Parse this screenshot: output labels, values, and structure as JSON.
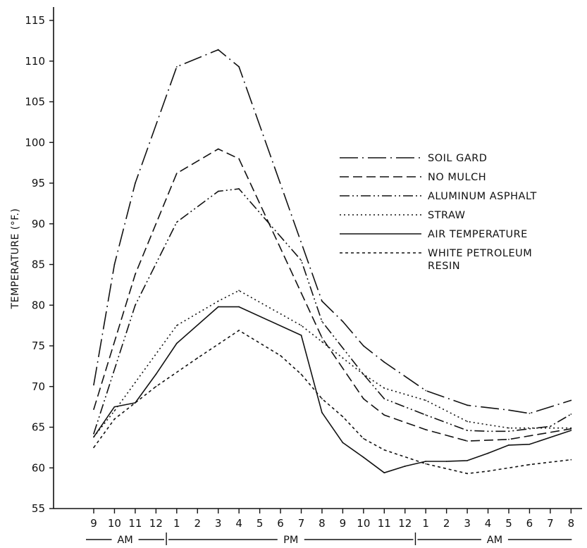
{
  "chart_data": {
    "type": "line",
    "title": "",
    "ylabel": "TEMPERATURE (°F.)",
    "xlabel": "",
    "ylim": [
      55,
      115
    ],
    "yticks": [
      55,
      60,
      65,
      70,
      75,
      80,
      85,
      90,
      95,
      100,
      105,
      110,
      115
    ],
    "ytick_labels": [
      "55",
      "60",
      "65",
      "70",
      "75",
      "80",
      "85",
      "90",
      "95",
      "100",
      "105",
      "110",
      "115"
    ],
    "categories": [
      "9",
      "10",
      "11",
      "12",
      "1",
      "2",
      "3",
      "4",
      "5",
      "6",
      "7",
      "8",
      "9",
      "10",
      "11",
      "12",
      "1",
      "2",
      "3",
      "4",
      "5",
      "6",
      "7",
      "8"
    ],
    "periods": [
      {
        "label": "AM",
        "from": 0,
        "to": 3
      },
      {
        "label": "PM",
        "from": 3,
        "to": 15
      },
      {
        "label": "AM",
        "from": 15,
        "to": 23
      }
    ],
    "legend_position": "center-right",
    "grid": false,
    "series": [
      {
        "name": "SOIL GARD",
        "dash": "long-dash-dot",
        "points": [
          [
            0,
            70.2
          ],
          [
            1,
            85
          ],
          [
            2,
            95
          ],
          [
            4,
            109.3
          ],
          [
            6,
            111.4
          ],
          [
            7,
            109.3
          ],
          [
            11,
            80.5
          ],
          [
            12,
            78
          ],
          [
            13,
            75
          ],
          [
            14,
            73
          ],
          [
            16,
            69.5
          ],
          [
            18,
            67.7
          ],
          [
            20,
            67.1
          ],
          [
            21,
            66.7
          ],
          [
            23,
            68.3
          ]
        ]
      },
      {
        "name": "NO MULCH",
        "dash": "dash",
        "points": [
          [
            0,
            67.2
          ],
          [
            2,
            83.8
          ],
          [
            4,
            96.2
          ],
          [
            6,
            99.2
          ],
          [
            7,
            98
          ],
          [
            10,
            81.5
          ],
          [
            11,
            76
          ],
          [
            13,
            68.5
          ],
          [
            14,
            66.5
          ],
          [
            16,
            64.7
          ],
          [
            18,
            63.3
          ],
          [
            20,
            63.5
          ],
          [
            23,
            64.8
          ]
        ]
      },
      {
        "name": "ALUMINUM ASPHALT",
        "dash": "dash-dot-dot",
        "points": [
          [
            0,
            64.2
          ],
          [
            2,
            80
          ],
          [
            4,
            90.2
          ],
          [
            6,
            94
          ],
          [
            7,
            94.3
          ],
          [
            10,
            85.5
          ],
          [
            11,
            78
          ],
          [
            13,
            71.5
          ],
          [
            14,
            68.5
          ],
          [
            16,
            66.5
          ],
          [
            18,
            64.6
          ],
          [
            19,
            64.5
          ],
          [
            20,
            64.5
          ],
          [
            22,
            65.1
          ],
          [
            23,
            66.6
          ]
        ]
      },
      {
        "name": "STRAW",
        "dash": "dot",
        "points": [
          [
            0,
            63.8
          ],
          [
            1,
            67
          ],
          [
            2,
            70.5
          ],
          [
            4,
            77.5
          ],
          [
            6,
            80.5
          ],
          [
            7,
            81.8
          ],
          [
            10,
            77.5
          ],
          [
            11,
            75.5
          ],
          [
            12,
            73.5
          ],
          [
            13,
            71.5
          ],
          [
            14,
            69.8
          ],
          [
            16,
            68.3
          ],
          [
            18,
            65.7
          ],
          [
            20,
            64.9
          ],
          [
            23,
            64.9
          ]
        ]
      },
      {
        "name": "AIR TEMPERATURE",
        "dash": "solid",
        "points": [
          [
            0,
            63.8
          ],
          [
            1,
            67.5
          ],
          [
            2,
            68
          ],
          [
            3,
            71.5
          ],
          [
            4,
            75.3
          ],
          [
            6,
            79.8
          ],
          [
            7,
            79.8
          ],
          [
            10,
            76.3
          ],
          [
            11,
            66.8
          ],
          [
            12,
            63.1
          ],
          [
            13,
            61.3
          ],
          [
            14,
            59.4
          ],
          [
            15,
            60.2
          ],
          [
            16,
            60.8
          ],
          [
            17,
            60.8
          ],
          [
            18,
            60.9
          ],
          [
            19,
            61.8
          ],
          [
            20,
            62.8
          ],
          [
            21,
            62.9
          ],
          [
            23,
            64.6
          ]
        ]
      },
      {
        "name": "WHITE PETROLEUM RESIN",
        "dash": "short-dash",
        "points": [
          [
            0,
            62.5
          ],
          [
            1,
            66
          ],
          [
            2,
            68
          ],
          [
            3,
            70
          ],
          [
            5,
            73.5
          ],
          [
            7,
            76.9
          ],
          [
            9,
            73.8
          ],
          [
            10,
            71.5
          ],
          [
            11,
            68.5
          ],
          [
            12,
            66.3
          ],
          [
            13,
            63.6
          ],
          [
            14,
            62.2
          ],
          [
            16,
            60.5
          ],
          [
            18,
            59.3
          ],
          [
            19,
            59.6
          ],
          [
            21,
            60.4
          ],
          [
            23,
            61
          ]
        ]
      }
    ]
  },
  "legend": [
    {
      "label": "SOIL GARD"
    },
    {
      "label": "NO MULCH"
    },
    {
      "label": "ALUMINUM ASPHALT"
    },
    {
      "label": "STRAW"
    },
    {
      "label": "AIR TEMPERATURE"
    },
    {
      "label": "WHITE PETROLEUM",
      "label2": "RESIN"
    }
  ],
  "styles": {
    "ink": "#111111",
    "background": "#ffffff"
  }
}
